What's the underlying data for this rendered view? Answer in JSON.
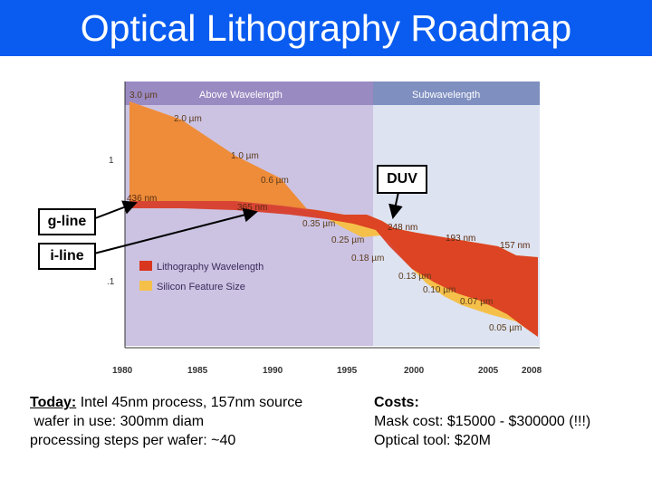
{
  "title": "Optical Lithography Roadmap",
  "figure": {
    "header_left": "Above Wavelength",
    "header_right": "Subwavelength",
    "y_ticks": [
      "1",
      ".1"
    ],
    "x_ticks": [
      "1980",
      "1985",
      "1990",
      "1995",
      "2000",
      "2005",
      "2008"
    ],
    "feature_labels": [
      "3.0 µm",
      "2.0 µm",
      "1.0 µm",
      "0.6 µm",
      "0.35 µm",
      "0.25 µm",
      "0.18 µm",
      "0.13 µm",
      "0.10 µm",
      "0.07 µm",
      "0.05 µm"
    ],
    "wavelength_labels": [
      "436 nm",
      "365 nm",
      "248 nm",
      "193 nm",
      "157 nm"
    ],
    "legend": [
      "Lithography Wavelength",
      "Silicon Feature Size"
    ],
    "colors": {
      "wavelength": "#d9361f",
      "feature": "#f5c04a",
      "above_bg": "#ccc3e3",
      "sub_bg": "#dde3f1"
    }
  },
  "callouts": {
    "duv": "DUV",
    "gline": "g-line",
    "iline": "i-line"
  },
  "today": {
    "label": "Today:",
    "line1_rest": " Intel 45nm process, 157nm source",
    "line2": " wafer in use: 300mm diam",
    "line3": "processing steps per wafer: ~40"
  },
  "costs": {
    "label": "Costs:",
    "mask": "Mask cost: $15000 - $300000 (!!!)",
    "tool": "Optical tool: $20M"
  }
}
